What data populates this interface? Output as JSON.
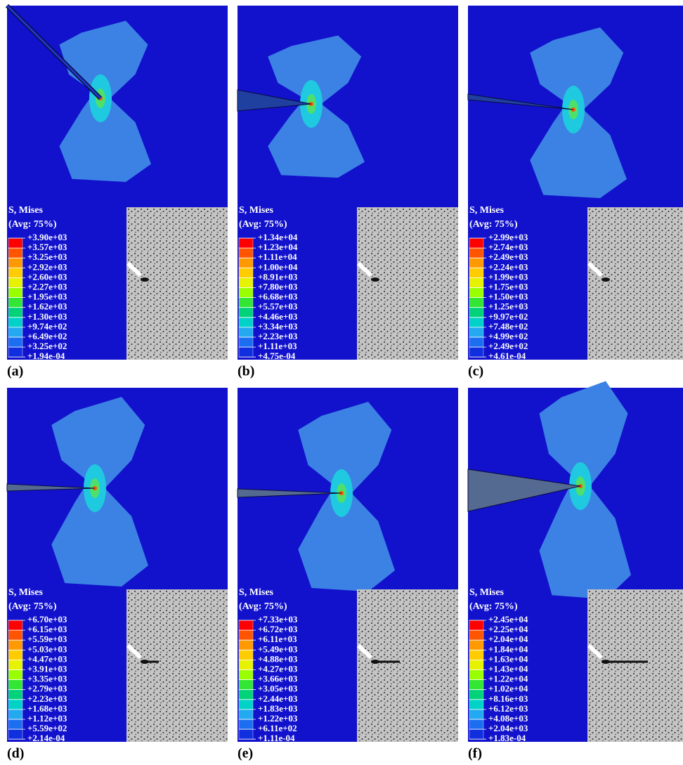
{
  "panels": [
    {
      "label": "(a)",
      "legend_title": "S, Mises",
      "legend_subtitle": "(Avg: 75%)",
      "legend_values": [
        "+3.90e+03",
        "+3.57e+03",
        "+3.25e+03",
        "+2.92e+03",
        "+2.60e+03",
        "+2.27e+03",
        "+1.95e+03",
        "+1.62e+03",
        "+1.30e+03",
        "+9.74e+02",
        "+6.49e+02",
        "+3.25e+02",
        "+1.94e-04"
      ]
    },
    {
      "label": "(b)",
      "legend_title": "S, Mises",
      "legend_subtitle": "(Avg: 75%)",
      "legend_values": [
        "+1.34e+04",
        "+1.23e+04",
        "+1.11e+04",
        "+1.00e+04",
        "+8.91e+03",
        "+7.80e+03",
        "+6.68e+03",
        "+5.57e+03",
        "+4.46e+03",
        "+3.34e+03",
        "+2.23e+03",
        "+1.11e+03",
        "+4.75e-04"
      ]
    },
    {
      "label": "(c)",
      "legend_title": "S, Mises",
      "legend_subtitle": "(Avg: 75%)",
      "legend_values": [
        "+2.99e+03",
        "+2.74e+03",
        "+2.49e+03",
        "+2.24e+03",
        "+1.99e+03",
        "+1.75e+03",
        "+1.50e+03",
        "+1.25e+03",
        "+9.97e+02",
        "+7.48e+02",
        "+4.99e+02",
        "+2.49e+02",
        "+4.61e-04"
      ]
    },
    {
      "label": "(d)",
      "legend_title": "S, Mises",
      "legend_subtitle": "(Avg: 75%)",
      "legend_values": [
        "+6.70e+03",
        "+6.15e+03",
        "+5.59e+03",
        "+5.03e+03",
        "+4.47e+03",
        "+3.91e+03",
        "+3.35e+03",
        "+2.79e+03",
        "+2.23e+03",
        "+1.68e+03",
        "+1.12e+03",
        "+5.59e+02",
        "+2.14e-04"
      ]
    },
    {
      "label": "(e)",
      "legend_title": "S, Mises",
      "legend_subtitle": "(Avg: 75%)",
      "legend_values": [
        "+7.33e+03",
        "+6.72e+03",
        "+6.11e+03",
        "+5.49e+03",
        "+4.88e+03",
        "+4.27e+03",
        "+3.66e+03",
        "+3.05e+03",
        "+2.44e+03",
        "+1.83e+03",
        "+1.22e+03",
        "+6.11e+02",
        "+1.11e-04"
      ]
    },
    {
      "label": "(f)",
      "legend_title": "S, Mises",
      "legend_subtitle": "(Avg: 75%)",
      "legend_values": [
        "+2.45e+04",
        "+2.25e+04",
        "+2.04e+04",
        "+1.84e+04",
        "+1.63e+04",
        "+1.43e+04",
        "+1.22e+04",
        "+1.02e+04",
        "+8.16e+03",
        "+6.12e+03",
        "+4.08e+03",
        "+2.04e+03",
        "+1.83e-04"
      ]
    }
  ]
}
